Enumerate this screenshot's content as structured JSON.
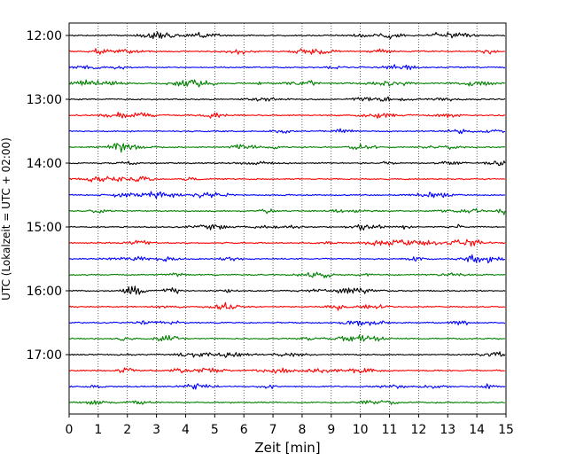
{
  "chart_data": {
    "type": "line",
    "title": "",
    "xlabel": "Zeit  [min]",
    "ylabel": "UTC (Lokalzeit = UTC + 02:00)",
    "xlim": [
      0,
      15
    ],
    "x_ticks": [
      0,
      1,
      2,
      3,
      4,
      5,
      6,
      7,
      8,
      9,
      10,
      11,
      12,
      13,
      14,
      15
    ],
    "grid": "vertical dotted",
    "y_tick_labels": [
      "12:00",
      "13:00",
      "14:00",
      "15:00",
      "16:00",
      "17:00"
    ],
    "trace_start": "12:00",
    "trace_interval_minutes": 15,
    "trace_count": 24,
    "colors": [
      "#000000",
      "#ff0000",
      "#0000ff",
      "#008000"
    ]
  }
}
